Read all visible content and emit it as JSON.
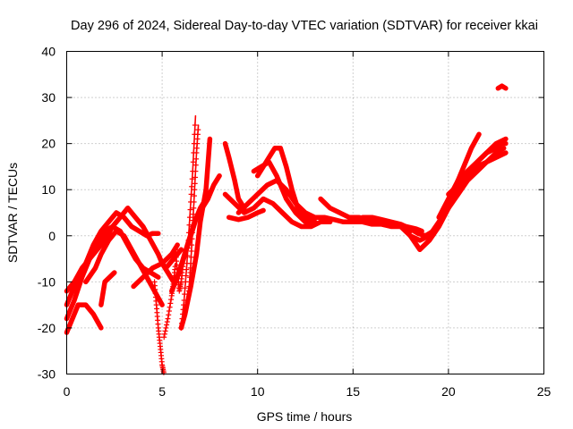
{
  "chart_data": {
    "type": "scatter",
    "title": "Day 296 of 2024, Sidereal Day-to-day VTEC variation (SDTVAR) for receiver kkai",
    "xlabel": "GPS time / hours",
    "ylabel": "SDTVAR / TECUs",
    "xlim": [
      0,
      25
    ],
    "ylim": [
      -30,
      40
    ],
    "xticks": [
      "0",
      "5",
      "10",
      "15",
      "20",
      "25"
    ],
    "yticks": [
      "-30",
      "-20",
      "-10",
      "0",
      "10",
      "20",
      "30",
      "40"
    ],
    "grid": true,
    "marker": "+",
    "color": "#ff0000",
    "series": [
      {
        "name": "track-1",
        "x": [
          0.0,
          0.4,
          0.8,
          1.2,
          1.6,
          2.0,
          2.4,
          2.8,
          3.2,
          3.6,
          4.0,
          4.4,
          4.8,
          5.0,
          5.2,
          5.6,
          6.0
        ],
        "y": [
          -12,
          -10,
          -7,
          -5,
          -3,
          -1,
          2,
          4,
          6,
          4,
          2,
          -1,
          -4,
          -6,
          -7,
          -5,
          -3
        ]
      },
      {
        "name": "track-2",
        "x": [
          0.0,
          0.3,
          0.7,
          1.0,
          1.4,
          1.8,
          2.2,
          2.6,
          3.0,
          3.4,
          3.8,
          4.2,
          4.5,
          4.8
        ],
        "y": [
          -15,
          -12,
          -9,
          -6,
          -2,
          1,
          3,
          5,
          4,
          2,
          1,
          0,
          0.5,
          0.5
        ]
      },
      {
        "name": "track-3",
        "x": [
          0.0,
          0.4,
          0.8,
          1.2,
          1.6,
          2.0,
          2.4,
          2.8,
          3.2,
          3.6,
          4.0,
          4.4,
          4.8
        ],
        "y": [
          -18,
          -14,
          -9,
          -5,
          -2,
          1,
          2,
          1,
          -2,
          -5,
          -7,
          -8,
          -9
        ]
      },
      {
        "name": "track-4",
        "x": [
          0.0,
          0.3,
          0.6,
          1.0,
          1.4,
          1.8
        ],
        "y": [
          -21,
          -18,
          -15,
          -15,
          -17,
          -20
        ]
      },
      {
        "name": "track-5",
        "x": [
          1.0,
          1.5,
          1.8,
          2.2,
          2.6,
          3.0,
          3.4,
          3.8,
          4.2,
          4.6,
          5.0
        ],
        "y": [
          -10,
          -7,
          -4,
          -1,
          1,
          0,
          -3,
          -6,
          -9,
          -12,
          -15
        ]
      },
      {
        "name": "track-6",
        "x": [
          1.8,
          2.0,
          2.5
        ],
        "y": [
          -15,
          -10,
          -8
        ]
      },
      {
        "name": "track-7",
        "x": [
          3.5,
          4.0,
          4.5,
          5.0,
          5.5,
          5.8
        ],
        "y": [
          -11,
          -9,
          -7,
          -6,
          -4,
          -2
        ]
      },
      {
        "name": "track-8",
        "x": [
          5.0,
          5.3,
          5.6,
          5.9,
          6.2,
          6.5,
          6.8,
          7.1,
          7.4,
          7.7,
          8.0
        ],
        "y": [
          -6,
          -8,
          -10,
          -8,
          -4,
          0,
          4,
          6,
          8,
          11,
          13
        ]
      },
      {
        "name": "track-9",
        "x": [
          5.5,
          5.8,
          6.1,
          6.4,
          6.7,
          7.0,
          7.3,
          7.6
        ],
        "y": [
          -12,
          -9,
          -5,
          -1,
          3,
          6,
          8,
          10
        ]
      },
      {
        "name": "track-10",
        "x": [
          6.0,
          6.2,
          6.5,
          6.8,
          7.0,
          7.3,
          7.5
        ],
        "y": [
          -20,
          -17,
          -11,
          -4,
          3,
          10,
          21
        ]
      },
      {
        "name": "track-11",
        "x": [
          8.3,
          8.5,
          8.8,
          9.0,
          9.3
        ],
        "y": [
          20,
          17,
          12,
          8,
          6
        ]
      },
      {
        "name": "track-12",
        "x": [
          8.3,
          8.8,
          9.3,
          9.8,
          10.3,
          10.8,
          11.3,
          11.8,
          12.3,
          12.8,
          13.3,
          13.8
        ],
        "y": [
          9,
          7,
          5,
          6,
          8,
          7,
          5,
          3,
          2,
          2,
          3,
          3
        ]
      },
      {
        "name": "track-13",
        "x": [
          8.5,
          9.0,
          9.5,
          10.0,
          10.3
        ],
        "y": [
          4,
          3.5,
          4,
          5,
          5.5
        ]
      },
      {
        "name": "track-14",
        "x": [
          9.0,
          9.5,
          10.0,
          10.5,
          11.0,
          11.5,
          12.0,
          12.5,
          13.0,
          13.5,
          14.0,
          14.5,
          15.0,
          15.5,
          16.0,
          16.5,
          17.0,
          17.5,
          18.0
        ],
        "y": [
          5,
          7,
          9,
          11,
          12,
          10,
          7,
          5,
          4,
          4,
          3.5,
          3,
          3,
          3,
          2.5,
          2.5,
          2,
          2,
          1
        ]
      },
      {
        "name": "track-15",
        "x": [
          10.0,
          10.3,
          10.6,
          10.9,
          11.2,
          11.5,
          11.8,
          12.1,
          12.5,
          13.0
        ],
        "y": [
          13,
          15,
          17,
          19,
          19,
          15,
          10,
          6,
          4,
          3
        ]
      },
      {
        "name": "track-16",
        "x": [
          9.8,
          10.2,
          10.6,
          11.0,
          11.5,
          12.0,
          12.5,
          13.0
        ],
        "y": [
          14,
          15,
          16,
          13,
          8,
          5,
          3,
          3
        ]
      },
      {
        "name": "track-17",
        "x": [
          13.3,
          13.8,
          14.3,
          14.8,
          15.3,
          15.8,
          16.3,
          16.8,
          17.3,
          17.8,
          18.3,
          18.6
        ],
        "y": [
          8,
          6,
          5,
          4,
          4,
          3.5,
          3,
          2.5,
          2.5,
          2,
          1.5,
          1
        ]
      },
      {
        "name": "track-18",
        "x": [
          15.5,
          16.0,
          16.5,
          17.0,
          17.5,
          18.0,
          18.4,
          18.8,
          19.2,
          19.6,
          20.0,
          20.4,
          20.8,
          21.2,
          21.6
        ],
        "y": [
          4,
          4,
          3.5,
          3,
          2.5,
          1.5,
          0.5,
          0,
          1,
          3,
          7,
          11,
          15,
          19,
          22
        ]
      },
      {
        "name": "track-19",
        "x": [
          17.5,
          18.0,
          18.5,
          19.0,
          19.5,
          20.0,
          20.5,
          21.0,
          21.5,
          22.0,
          22.5,
          22.8,
          23.0
        ],
        "y": [
          2,
          0,
          -3,
          -1,
          2,
          6,
          10,
          14,
          16,
          18,
          19,
          20,
          20
        ]
      },
      {
        "name": "track-20",
        "x": [
          18.0,
          18.5,
          19.0,
          19.5,
          20.0,
          20.5,
          21.0,
          21.5,
          22.0,
          22.5,
          22.9
        ],
        "y": [
          0,
          -1,
          0,
          3,
          6,
          9,
          12,
          14,
          16,
          18,
          19
        ]
      },
      {
        "name": "track-21",
        "x": [
          19.5,
          20.0,
          20.5,
          21.0,
          21.5,
          22.0,
          22.5,
          23.0
        ],
        "y": [
          4,
          8,
          12,
          14,
          16,
          18,
          20,
          21
        ]
      },
      {
        "name": "track-22",
        "x": [
          20.0,
          20.5,
          21.0,
          21.5,
          22.0,
          22.5,
          23.0
        ],
        "y": [
          9,
          11,
          13,
          15,
          16,
          17,
          18
        ]
      },
      {
        "name": "track-23",
        "x": [
          22.6,
          22.8,
          23.0
        ],
        "y": [
          32,
          32.5,
          32
        ]
      }
    ],
    "spikes": [
      {
        "name": "spike-1",
        "x": [
          4.6,
          4.7,
          4.8,
          4.9,
          5.0,
          5.1
        ],
        "y": [
          -10,
          -15,
          -20,
          -24,
          -28,
          -30
        ]
      },
      {
        "name": "spike-2",
        "x": [
          5.1,
          5.3,
          5.5,
          5.6,
          5.7
        ],
        "y": [
          -22,
          -18,
          -13,
          -10,
          -6
        ]
      },
      {
        "name": "spike-3",
        "x": [
          6.0,
          6.15,
          6.3,
          6.45,
          6.6,
          6.75
        ],
        "y": [
          -20,
          -14,
          -6,
          4,
          14,
          26
        ]
      },
      {
        "name": "spike-4",
        "x": [
          6.4,
          6.5,
          6.6,
          6.7,
          6.8,
          6.9
        ],
        "y": [
          -12,
          -6,
          2,
          10,
          18,
          24
        ]
      },
      {
        "name": "spike-5",
        "x": [
          5.7,
          5.8,
          5.9,
          6.0,
          6.1
        ],
        "y": [
          -3,
          -8,
          -12,
          -10,
          -6
        ]
      }
    ]
  }
}
